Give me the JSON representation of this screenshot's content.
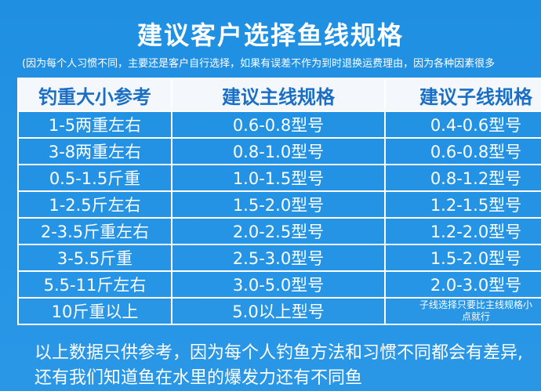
{
  "header": {
    "title": "建议客户选择鱼线规格",
    "subtitle": "(因为每个人习惯不同，主要还是客户自行选择，如果有误差不作为到时退换运费理由，因为各种因素很多"
  },
  "table": {
    "columns": [
      "钓重大小参考",
      "建议主线规格",
      "建议子线规格"
    ],
    "rows": [
      [
        "1-5两重左右",
        "0.6-0.8型号",
        "0.4-0.6型号"
      ],
      [
        "3-8两重左右",
        "0.8-1.0型号",
        "0.6-0.8型号"
      ],
      [
        "0.5-1.5斤重",
        "1.0-1.5型号",
        "0.8-1.2型号"
      ],
      [
        "1-2.5斤左右",
        "1.5-2.0型号",
        "1.2-1.5型号"
      ],
      [
        "2-3.5斤重左右",
        "2.0-2.5型号",
        "1.2-2.0型号"
      ],
      [
        "3-5.5斤重",
        "2.5-3.0型号",
        "1.5-2.0型号"
      ],
      [
        "5.5-11斤左右",
        "3.0-5.0型号",
        "2.0-3.0型号"
      ],
      [
        "10斤重以上",
        "5.0以上型号",
        "子线选择只要比主线规格小点就行"
      ]
    ]
  },
  "footer": {
    "lines": [
      "以上数据只供参考，因为每个人钓鱼方法和习惯不同都会有差异,",
      "还有我们知道鱼在水里的爆发力还有不同鱼"
    ]
  }
}
